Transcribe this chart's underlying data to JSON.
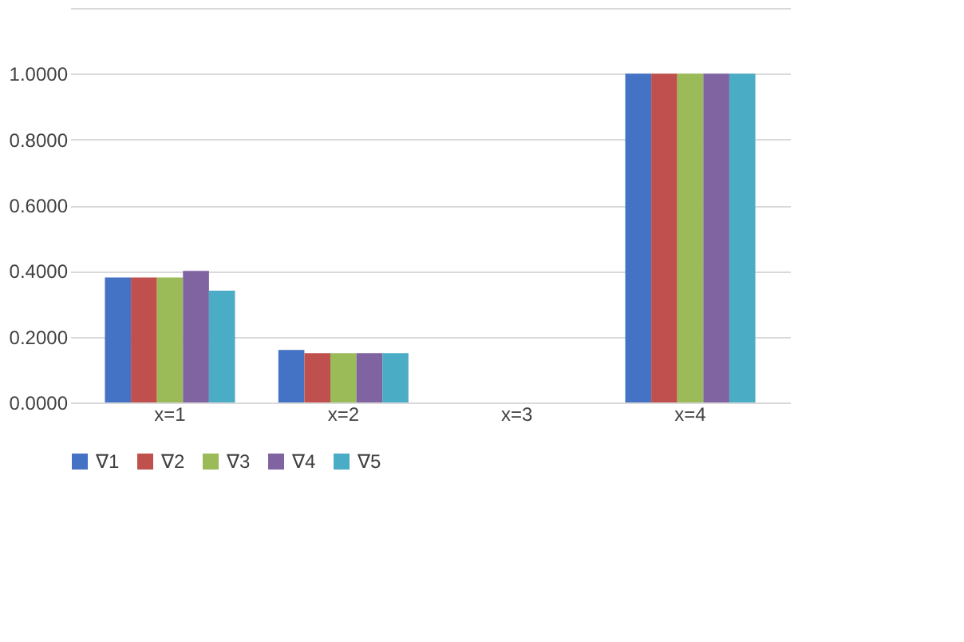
{
  "chart_data": {
    "type": "bar",
    "categories": [
      "x=1",
      "x=2",
      "x=3",
      "x=4"
    ],
    "series": [
      {
        "name": "∇1",
        "color": "#4472c4",
        "values": [
          0.38,
          0.16,
          0.0,
          1.0
        ]
      },
      {
        "name": "∇2",
        "color": "#c0504d",
        "values": [
          0.38,
          0.15,
          0.0,
          1.0
        ]
      },
      {
        "name": "∇3",
        "color": "#9bbb59",
        "values": [
          0.38,
          0.15,
          0.0,
          1.0
        ]
      },
      {
        "name": "∇4",
        "color": "#8064a2",
        "values": [
          0.4,
          0.15,
          0.0,
          1.0
        ]
      },
      {
        "name": "∇5",
        "color": "#4bacc6",
        "values": [
          0.34,
          0.15,
          0.0,
          1.0
        ]
      }
    ],
    "ylim": [
      0,
      1.2
    ],
    "yticks": [
      {
        "value": 0,
        "label": "0.0000"
      },
      {
        "value": 0.2,
        "label": "0.2000"
      },
      {
        "value": 0.4,
        "label": "0.4000"
      },
      {
        "value": 0.6,
        "label": "0.6000"
      },
      {
        "value": 0.8,
        "label": "0.8000"
      },
      {
        "value": 1.0,
        "label": "1.0000"
      },
      {
        "value": 1.2,
        "label": null
      }
    ],
    "grid": "y",
    "legend": "bottom"
  }
}
